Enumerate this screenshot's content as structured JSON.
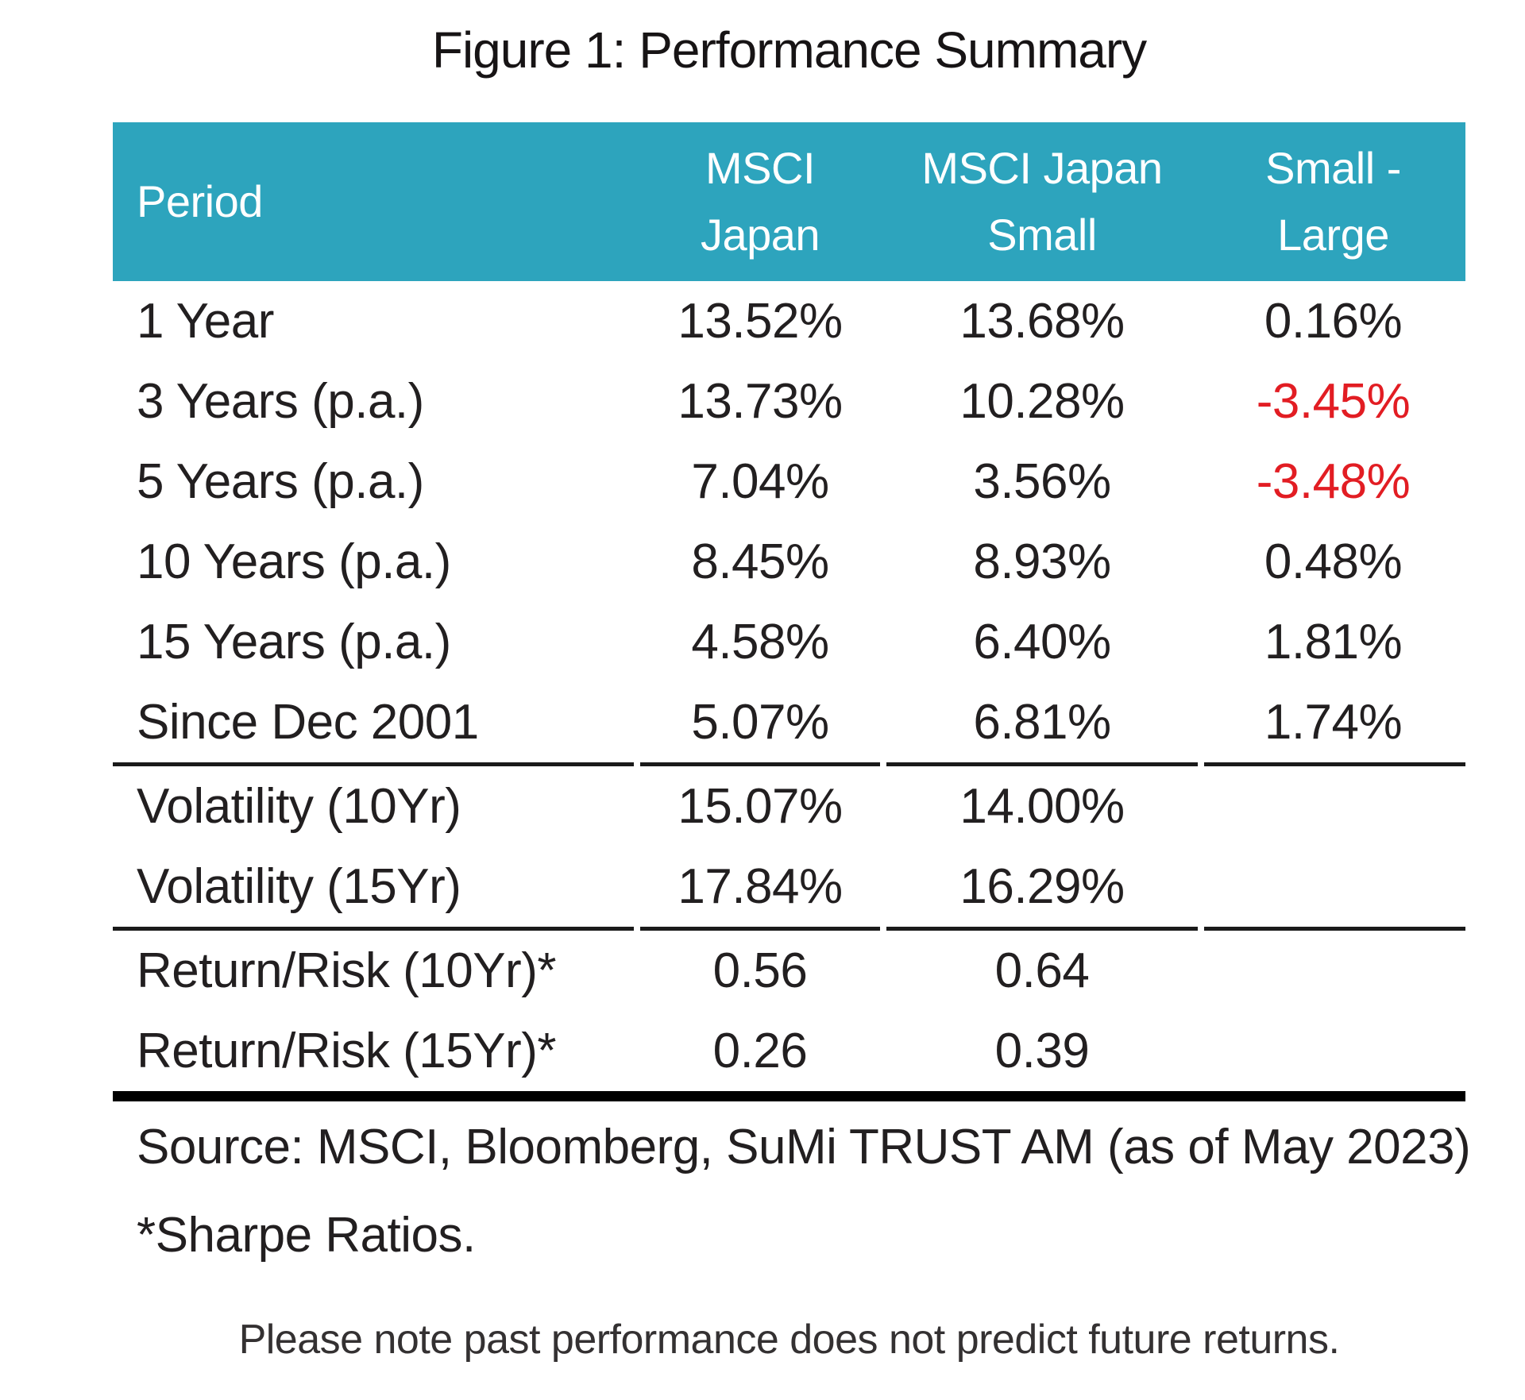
{
  "title": "Figure 1: Performance Summary",
  "colors": {
    "header_bg": "#2da4bd",
    "header_text": "#ffffff",
    "body_text": "#221f20",
    "negative_value": "#e21d23",
    "rule": "#000000"
  },
  "table": {
    "columns": [
      {
        "label": "Period"
      },
      {
        "line1": "MSCI",
        "line2": "Japan"
      },
      {
        "line1": "MSCI Japan",
        "line2": "Small"
      },
      {
        "line1": "Small -",
        "line2": "Large"
      }
    ],
    "rows": [
      {
        "period": "1 Year",
        "msci_japan": "13.52%",
        "msci_japan_small": "13.68%",
        "small_minus_large": "0.16%"
      },
      {
        "period": "3 Years (p.a.)",
        "msci_japan": "13.73%",
        "msci_japan_small": "10.28%",
        "small_minus_large": "-3.45%"
      },
      {
        "period": "5 Years (p.a.)",
        "msci_japan": "7.04%",
        "msci_japan_small": "3.56%",
        "small_minus_large": "-3.48%"
      },
      {
        "period": "10 Years (p.a.)",
        "msci_japan": "8.45%",
        "msci_japan_small": "8.93%",
        "small_minus_large": "0.48%"
      },
      {
        "period": "15 Years (p.a.)",
        "msci_japan": "4.58%",
        "msci_japan_small": "6.40%",
        "small_minus_large": "1.81%"
      },
      {
        "period": "Since Dec 2001",
        "msci_japan": "5.07%",
        "msci_japan_small": "6.81%",
        "small_minus_large": "1.74%"
      },
      {
        "period": "Volatility (10Yr)",
        "msci_japan": "15.07%",
        "msci_japan_small": "14.00%",
        "small_minus_large": ""
      },
      {
        "period": "Volatility (15Yr)",
        "msci_japan": "17.84%",
        "msci_japan_small": "16.29%",
        "small_minus_large": ""
      },
      {
        "period": "Return/Risk (10Yr)*",
        "msci_japan": "0.56",
        "msci_japan_small": "0.64",
        "small_minus_large": ""
      },
      {
        "period": "Return/Risk (15Yr)*",
        "msci_japan": "0.26",
        "msci_japan_small": "0.39",
        "small_minus_large": ""
      }
    ]
  },
  "footnotes": {
    "source": "Source: MSCI, Bloomberg, SuMi TRUST AM (as of May 2023)",
    "sharpe": "*Sharpe Ratios.",
    "disclaimer": "Please note past performance does not predict future returns."
  }
}
